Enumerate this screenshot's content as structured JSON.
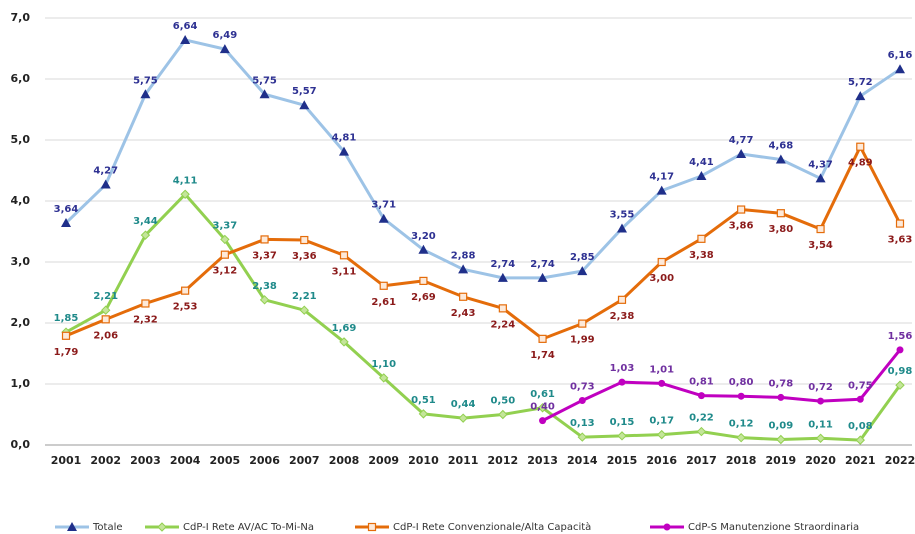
{
  "chart_data": {
    "type": "line",
    "categories": [
      "2001",
      "2002",
      "2003",
      "2004",
      "2005",
      "2006",
      "2007",
      "2008",
      "2009",
      "2010",
      "2011",
      "2012",
      "2013",
      "2014",
      "2015",
      "2016",
      "2017",
      "2018",
      "2019",
      "2020",
      "2021",
      "2022"
    ],
    "ylim": [
      0,
      7
    ],
    "yticks": [
      {
        "value": 0,
        "label": "0,0"
      },
      {
        "value": 1,
        "label": "1,0"
      },
      {
        "value": 2,
        "label": "2,0"
      },
      {
        "value": 3,
        "label": "3,0"
      },
      {
        "value": 4,
        "label": "4,0"
      },
      {
        "value": 5,
        "label": "5,0"
      },
      {
        "value": 6,
        "label": "6,0"
      },
      {
        "value": 7,
        "label": "7,0"
      }
    ],
    "grid": true,
    "legend": "bottom",
    "series": [
      {
        "name": "Totale",
        "color": "#9dc3e6",
        "marker": "triangle",
        "marker_color": "#1f2f8a",
        "label_color": "#2e3192",
        "label_position": "above",
        "values": [
          3.64,
          4.27,
          5.75,
          6.64,
          6.49,
          5.75,
          5.57,
          4.81,
          3.71,
          3.2,
          2.88,
          2.74,
          2.74,
          2.85,
          3.55,
          4.17,
          4.41,
          4.77,
          4.68,
          4.37,
          5.72,
          6.16
        ],
        "value_labels": [
          "3,64",
          "4,27",
          "5,75",
          "6,64",
          "6,49",
          "5,75",
          "5,57",
          "4,81",
          "3,71",
          "3,20",
          "2,88",
          "2,74",
          "2,74",
          "2,85",
          "3,55",
          "4,17",
          "4,41",
          "4,77",
          "4,68",
          "4,37",
          "5,72",
          "6,16"
        ]
      },
      {
        "name": "CdP-I Rete AV/AC To-Mi-Na",
        "color": "#92d050",
        "marker": "diamond",
        "marker_color": "#c4e59a",
        "label_color": "#1f8a8a",
        "label_position": "above",
        "values": [
          1.85,
          2.21,
          3.44,
          4.11,
          3.37,
          2.38,
          2.21,
          1.69,
          1.1,
          0.51,
          0.44,
          0.5,
          0.61,
          0.13,
          0.15,
          0.17,
          0.22,
          0.12,
          0.09,
          0.11,
          0.08,
          0.98
        ],
        "value_labels": [
          "1,85",
          "2,21",
          "3,44",
          "4,11",
          "3,37",
          "2,38",
          "2,21",
          "1,69",
          "1,10",
          "0,51",
          "0,44",
          "0,50",
          "0,61",
          "0,13",
          "0,15",
          "0,17",
          "0,22",
          "0,12",
          "0,09",
          "0,11",
          "0,08",
          "0,98"
        ]
      },
      {
        "name": "CdP-I Rete Convenzionale/Alta Capacità",
        "color": "#e46c0a",
        "marker": "square",
        "marker_color": "#fde9d9",
        "label_color": "#8b1a1a",
        "label_position": "below",
        "values": [
          1.79,
          2.06,
          2.32,
          2.53,
          3.12,
          3.37,
          3.36,
          3.11,
          2.61,
          2.69,
          2.43,
          2.24,
          1.74,
          1.99,
          2.38,
          3.0,
          3.38,
          3.86,
          3.8,
          3.54,
          4.89,
          3.63
        ],
        "value_labels": [
          "1,79",
          "2,06",
          "2,32",
          "2,53",
          "3,12",
          "3,37",
          "3,36",
          "3,11",
          "2,61",
          "2,69",
          "2,43",
          "2,24",
          "1,74",
          "1,99",
          "2,38",
          "3,00",
          "3,38",
          "3,86",
          "3,80",
          "3,54",
          "4,89",
          "3,63"
        ]
      },
      {
        "name": "CdP-S Manutenzione Straordinaria",
        "color": "#c000c0",
        "marker": "circle",
        "marker_color": "#c000c0",
        "label_color": "#7030a0",
        "label_position": "above",
        "values": [
          null,
          null,
          null,
          null,
          null,
          null,
          null,
          null,
          null,
          null,
          null,
          null,
          0.4,
          0.73,
          1.03,
          1.01,
          0.81,
          0.8,
          0.78,
          0.72,
          0.75,
          1.56
        ],
        "value_labels": [
          null,
          null,
          null,
          null,
          null,
          null,
          null,
          null,
          null,
          null,
          null,
          null,
          "0,40",
          "0,73",
          "1,03",
          "1,01",
          "0,81",
          "0,80",
          "0,78",
          "0,72",
          "0,75",
          "1,56"
        ]
      }
    ]
  }
}
